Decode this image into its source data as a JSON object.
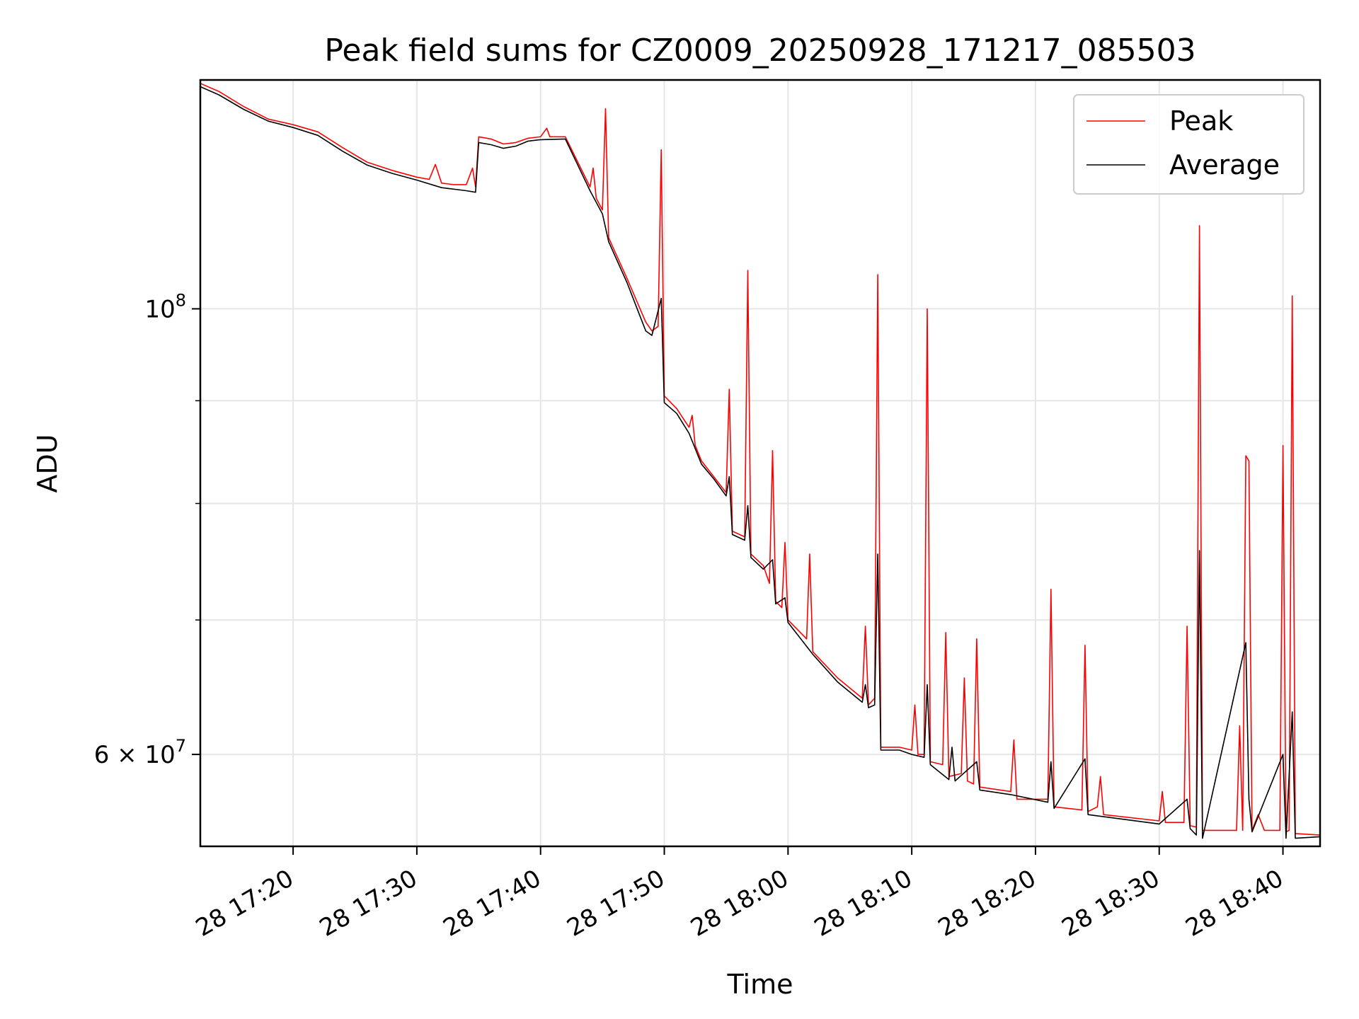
{
  "chart_data": {
    "type": "line",
    "title": "Peak field sums for CZ0009_20250928_171217_085503",
    "xlabel": "Time",
    "ylabel": "ADU",
    "x_unit": "minutes",
    "x_range": [
      "28 17:12:30",
      "28 18:43:00"
    ],
    "y_scale": "log",
    "ylim": [
      54000000,
      130000000
    ],
    "x_ticks": [
      "28 17:20",
      "28 17:30",
      "28 17:40",
      "28 17:50",
      "28 18:00",
      "28 18:10",
      "28 18:20",
      "28 18:30",
      "28 18:40"
    ],
    "y_tick_labels": [
      {
        "value": 100000000,
        "base": "10",
        "exp": "8",
        "coef": ""
      },
      {
        "value": 60000000,
        "base": "10",
        "exp": "7",
        "coef": "6 × "
      }
    ],
    "y_minor_ticks": [
      70000000,
      80000000,
      90000000
    ],
    "grid": true,
    "legend": {
      "position": "top-right",
      "entries": [
        "Peak",
        "Average"
      ]
    },
    "series": [
      {
        "name": "Peak",
        "color": "#ff0000",
        "points": [
          [
            "28 17:12:30",
            129500000
          ],
          [
            "28 17:14:00",
            128300000
          ],
          [
            "28 17:16:00",
            126100000
          ],
          [
            "28 17:18:00",
            124300000
          ],
          [
            "28 17:20:00",
            123500000
          ],
          [
            "28 17:22:00",
            122500000
          ],
          [
            "28 17:24:00",
            120300000
          ],
          [
            "28 17:26:00",
            118300000
          ],
          [
            "28 17:28:00",
            117200000
          ],
          [
            "28 17:30:00",
            116300000
          ],
          [
            "28 17:31:00",
            116000000
          ],
          [
            "28 17:31:30",
            118000000
          ],
          [
            "28 17:32:00",
            115500000
          ],
          [
            "28 17:33:00",
            115300000
          ],
          [
            "28 17:34:00",
            115300000
          ],
          [
            "28 17:34:30",
            117500000
          ],
          [
            "28 17:34:45",
            115000000
          ],
          [
            "28 17:35:00",
            121800000
          ],
          [
            "28 17:36:00",
            121500000
          ],
          [
            "28 17:37:00",
            120800000
          ],
          [
            "28 17:38:00",
            121000000
          ],
          [
            "28 17:39:00",
            121600000
          ],
          [
            "28 17:40:00",
            121800000
          ],
          [
            "28 17:40:30",
            123000000
          ],
          [
            "28 17:40:45",
            121800000
          ],
          [
            "28 17:42:00",
            121800000
          ],
          [
            "28 17:44:00",
            115000000
          ],
          [
            "28 17:44:15",
            117500000
          ],
          [
            "28 17:44:30",
            113500000
          ],
          [
            "28 17:45:00",
            112000000
          ],
          [
            "28 17:45:15",
            125800000
          ],
          [
            "28 17:45:30",
            108500000
          ],
          [
            "28 17:47:00",
            103500000
          ],
          [
            "28 17:48:30",
            98500000
          ],
          [
            "28 17:49:00",
            97500000
          ],
          [
            "28 17:49:30",
            98000000
          ],
          [
            "28 17:49:45",
            120000000
          ],
          [
            "28 17:50:00",
            90500000
          ],
          [
            "28 17:51:00",
            89200000
          ],
          [
            "28 17:52:00",
            87300000
          ],
          [
            "28 17:52:15",
            88500000
          ],
          [
            "28 17:52:30",
            85500000
          ],
          [
            "28 17:53:00",
            84000000
          ],
          [
            "28 17:54:00",
            82500000
          ],
          [
            "28 17:55:00",
            81000000
          ],
          [
            "28 17:55:15",
            91200000
          ],
          [
            "28 17:55:30",
            77500000
          ],
          [
            "28 17:56:30",
            77000000
          ],
          [
            "28 17:56:45",
            104500000
          ],
          [
            "28 17:57:00",
            75500000
          ],
          [
            "28 17:58:00",
            74500000
          ],
          [
            "28 17:58:30",
            73000000
          ],
          [
            "28 17:58:45",
            85000000
          ],
          [
            "28 17:59:00",
            71500000
          ],
          [
            "28 17:59:30",
            71000000
          ],
          [
            "28 17:59:45",
            76500000
          ],
          [
            "28 18:00:00",
            70000000
          ],
          [
            "28 18:01:00",
            69000000
          ],
          [
            "28 18:01:30",
            68500000
          ],
          [
            "28 18:01:45",
            75500000
          ],
          [
            "28 18:02:00",
            67500000
          ],
          [
            "28 18:04:00",
            65500000
          ],
          [
            "28 18:06:00",
            64000000
          ],
          [
            "28 18:06:15",
            69500000
          ],
          [
            "28 18:06:30",
            63500000
          ],
          [
            "28 18:07:00",
            64000000
          ],
          [
            "28 18:07:15",
            104000000
          ],
          [
            "28 18:07:30",
            60500000
          ],
          [
            "28 18:09:00",
            60500000
          ],
          [
            "28 18:10:00",
            60300000
          ],
          [
            "28 18:10:15",
            63500000
          ],
          [
            "28 18:10:30",
            60000000
          ],
          [
            "28 18:11:00",
            60000000
          ],
          [
            "28 18:11:15",
            100000000
          ],
          [
            "28 18:11:30",
            59500000
          ],
          [
            "28 18:12:30",
            59300000
          ],
          [
            "28 18:12:45",
            69000000
          ],
          [
            "28 18:13:00",
            58500000
          ],
          [
            "28 18:14:00",
            58700000
          ],
          [
            "28 18:14:15",
            65500000
          ],
          [
            "28 18:14:30",
            58200000
          ],
          [
            "28 18:15:00",
            58000000
          ],
          [
            "28 18:15:15",
            68500000
          ],
          [
            "28 18:15:30",
            57800000
          ],
          [
            "28 18:18:00",
            57500000
          ],
          [
            "28 18:18:15",
            61000000
          ],
          [
            "28 18:18:30",
            57000000
          ],
          [
            "28 18:21:00",
            57000000
          ],
          [
            "28 18:21:15",
            72500000
          ],
          [
            "28 18:21:30",
            56500000
          ],
          [
            "28 18:23:45",
            56300000
          ],
          [
            "28 18:24:00",
            68000000
          ],
          [
            "28 18:24:15",
            56200000
          ],
          [
            "28 18:25:00",
            56500000
          ],
          [
            "28 18:25:15",
            58500000
          ],
          [
            "28 18:25:30",
            56000000
          ],
          [
            "28 18:30:00",
            55600000
          ],
          [
            "28 18:30:15",
            57500000
          ],
          [
            "28 18:30:30",
            55500000
          ],
          [
            "28 18:32:00",
            55500000
          ],
          [
            "28 18:32:15",
            69500000
          ],
          [
            "28 18:32:30",
            55300000
          ],
          [
            "28 18:33:00",
            55200000
          ],
          [
            "28 18:33:15",
            110000000
          ],
          [
            "28 18:33:30",
            55000000
          ],
          [
            "28 18:36:15",
            55000000
          ],
          [
            "28 18:36:30",
            62000000
          ],
          [
            "28 18:36:45",
            55000000
          ],
          [
            "28 18:37:00",
            84500000
          ],
          [
            "28 18:37:15",
            84000000
          ],
          [
            "28 18:37:30",
            55000000
          ],
          [
            "28 18:38:00",
            56000000
          ],
          [
            "28 18:38:30",
            55000000
          ],
          [
            "28 18:39:45",
            55000000
          ],
          [
            "28 18:40:00",
            85500000
          ],
          [
            "28 18:40:15",
            54900000
          ],
          [
            "28 18:40:30",
            55000000
          ],
          [
            "28 18:40:45",
            101500000
          ],
          [
            "28 18:41:00",
            54800000
          ],
          [
            "28 18:43:00",
            54700000
          ]
        ]
      },
      {
        "name": "Average",
        "color": "#000000",
        "points": [
          [
            "28 17:12:30",
            129000000
          ],
          [
            "28 17:14:00",
            127800000
          ],
          [
            "28 17:16:00",
            125700000
          ],
          [
            "28 17:18:00",
            124000000
          ],
          [
            "28 17:20:00",
            123100000
          ],
          [
            "28 17:22:00",
            122000000
          ],
          [
            "28 17:24:00",
            119800000
          ],
          [
            "28 17:26:00",
            117900000
          ],
          [
            "28 17:28:00",
            116800000
          ],
          [
            "28 17:30:00",
            115900000
          ],
          [
            "28 17:32:00",
            114900000
          ],
          [
            "28 17:34:00",
            114500000
          ],
          [
            "28 17:34:45",
            114300000
          ],
          [
            "28 17:35:00",
            121000000
          ],
          [
            "28 17:36:00",
            120700000
          ],
          [
            "28 17:37:00",
            120200000
          ],
          [
            "28 17:38:00",
            120500000
          ],
          [
            "28 17:39:00",
            121200000
          ],
          [
            "28 17:40:00",
            121400000
          ],
          [
            "28 17:42:00",
            121500000
          ],
          [
            "28 17:44:00",
            114500000
          ],
          [
            "28 17:45:00",
            111500000
          ],
          [
            "28 17:45:30",
            108000000
          ],
          [
            "28 17:47:00",
            103000000
          ],
          [
            "28 17:48:30",
            97500000
          ],
          [
            "28 17:49:00",
            97000000
          ],
          [
            "28 17:49:45",
            101200000
          ],
          [
            "28 17:50:00",
            89800000
          ],
          [
            "28 17:51:00",
            88700000
          ],
          [
            "28 17:52:00",
            86700000
          ],
          [
            "28 17:53:00",
            83700000
          ],
          [
            "28 17:54:00",
            82300000
          ],
          [
            "28 17:55:00",
            80700000
          ],
          [
            "28 17:55:15",
            82500000
          ],
          [
            "28 17:55:30",
            77200000
          ],
          [
            "28 17:56:30",
            76700000
          ],
          [
            "28 17:56:45",
            79800000
          ],
          [
            "28 17:57:00",
            75200000
          ],
          [
            "28 17:58:00",
            74200000
          ],
          [
            "28 17:58:45",
            75000000
          ],
          [
            "28 17:59:00",
            71300000
          ],
          [
            "28 17:59:45",
            71800000
          ],
          [
            "28 18:00:00",
            69800000
          ],
          [
            "28 18:02:00",
            67300000
          ],
          [
            "28 18:04:00",
            65200000
          ],
          [
            "28 18:06:00",
            63700000
          ],
          [
            "28 18:06:15",
            65000000
          ],
          [
            "28 18:06:30",
            63300000
          ],
          [
            "28 18:07:00",
            63500000
          ],
          [
            "28 18:07:15",
            75500000
          ],
          [
            "28 18:07:30",
            60300000
          ],
          [
            "28 18:09:00",
            60300000
          ],
          [
            "28 18:10:00",
            60000000
          ],
          [
            "28 18:11:00",
            59800000
          ],
          [
            "28 18:11:15",
            65000000
          ],
          [
            "28 18:11:30",
            59300000
          ],
          [
            "28 18:13:00",
            58300000
          ],
          [
            "28 18:13:15",
            60500000
          ],
          [
            "28 18:13:30",
            58200000
          ],
          [
            "28 18:15:15",
            59500000
          ],
          [
            "28 18:15:30",
            57600000
          ],
          [
            "28 18:18:00",
            57300000
          ],
          [
            "28 18:21:00",
            56800000
          ],
          [
            "28 18:21:15",
            59500000
          ],
          [
            "28 18:21:30",
            56400000
          ],
          [
            "28 18:24:00",
            59700000
          ],
          [
            "28 18:24:15",
            56000000
          ],
          [
            "28 18:30:00",
            55400000
          ],
          [
            "28 18:32:15",
            57000000
          ],
          [
            "28 18:32:30",
            55100000
          ],
          [
            "28 18:33:00",
            54700000
          ],
          [
            "28 18:33:15",
            75800000
          ],
          [
            "28 18:33:30",
            54500000
          ],
          [
            "28 18:37:00",
            68200000
          ],
          [
            "28 18:37:15",
            57000000
          ],
          [
            "28 18:37:30",
            54900000
          ],
          [
            "28 18:40:00",
            60000000
          ],
          [
            "28 18:40:15",
            54500000
          ],
          [
            "28 18:40:45",
            63000000
          ],
          [
            "28 18:41:00",
            54500000
          ],
          [
            "28 18:43:00",
            54600000
          ]
        ]
      }
    ]
  }
}
